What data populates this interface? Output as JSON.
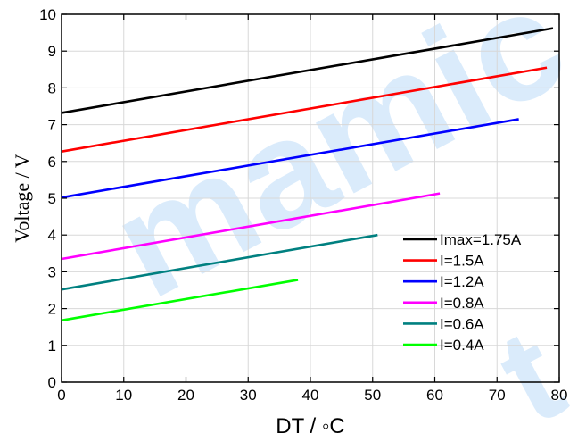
{
  "watermark": {
    "text_main": "mamic",
    "text_side": "t",
    "color": "#5aa8f0"
  },
  "chart_data": {
    "type": "line",
    "xlabel": "DT / ◦C",
    "ylabel": "Voltage / V",
    "xlim": [
      0,
      80
    ],
    "ylim": [
      0,
      10
    ],
    "xticks": [
      0,
      10,
      20,
      30,
      40,
      50,
      60,
      70,
      80
    ],
    "yticks": [
      0,
      1,
      2,
      3,
      4,
      5,
      6,
      7,
      8,
      9,
      10
    ],
    "grid": true,
    "legend_position": "bottom-right",
    "series": [
      {
        "name": "Imax=1.75A",
        "color": "#000000",
        "x": [
          0,
          79
        ],
        "y": [
          7.32,
          9.62
        ]
      },
      {
        "name": "I=1.5A",
        "color": "#ff0000",
        "x": [
          0,
          78
        ],
        "y": [
          6.27,
          8.55
        ]
      },
      {
        "name": "I=1.2A",
        "color": "#0000ff",
        "x": [
          0,
          73.5
        ],
        "y": [
          5.02,
          7.15
        ]
      },
      {
        "name": "I=0.8A",
        "color": "#ff00ff",
        "x": [
          0,
          60.8
        ],
        "y": [
          3.35,
          5.13
        ]
      },
      {
        "name": "I=0.6A",
        "color": "#008080",
        "x": [
          0,
          50.8
        ],
        "y": [
          2.52,
          4.0
        ]
      },
      {
        "name": "I=0.4A",
        "color": "#00ff00",
        "x": [
          0,
          38
        ],
        "y": [
          1.68,
          2.78
        ]
      }
    ]
  }
}
